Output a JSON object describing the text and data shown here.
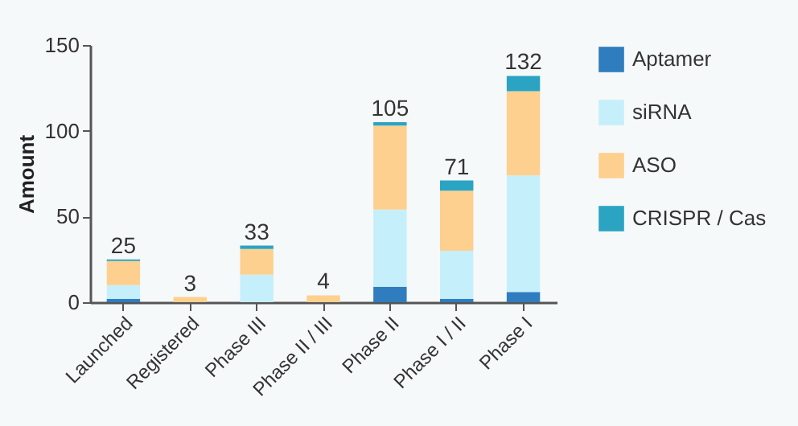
{
  "chart_data": {
    "type": "bar",
    "stacked": true,
    "ylabel": "Amount",
    "categories": [
      "Launched",
      "Registered",
      "Phase III",
      "Phase II / III",
      "Phase II",
      "Phase I / II",
      "Phase I"
    ],
    "series": [
      {
        "name": "Aptamer",
        "color": "#2f7dbf",
        "values": [
          2,
          0,
          0,
          0,
          9,
          2,
          6
        ]
      },
      {
        "name": "siRNA",
        "color": "#c6effc",
        "values": [
          8,
          0,
          16,
          0,
          45,
          28,
          68
        ]
      },
      {
        "name": "ASO",
        "color": "#fdd08f",
        "values": [
          14,
          3,
          15,
          4,
          49,
          35,
          49
        ]
      },
      {
        "name": "CRISPR / Cas",
        "color": "#2ba4c4",
        "values": [
          1,
          0,
          2,
          0,
          2,
          6,
          9
        ]
      }
    ],
    "totals": [
      "25",
      "3",
      "33",
      "4",
      "105",
      "71",
      "132"
    ],
    "ylim": [
      0,
      150
    ],
    "yticks": [
      0,
      50,
      100,
      150
    ],
    "grid": false,
    "legend": "right"
  }
}
